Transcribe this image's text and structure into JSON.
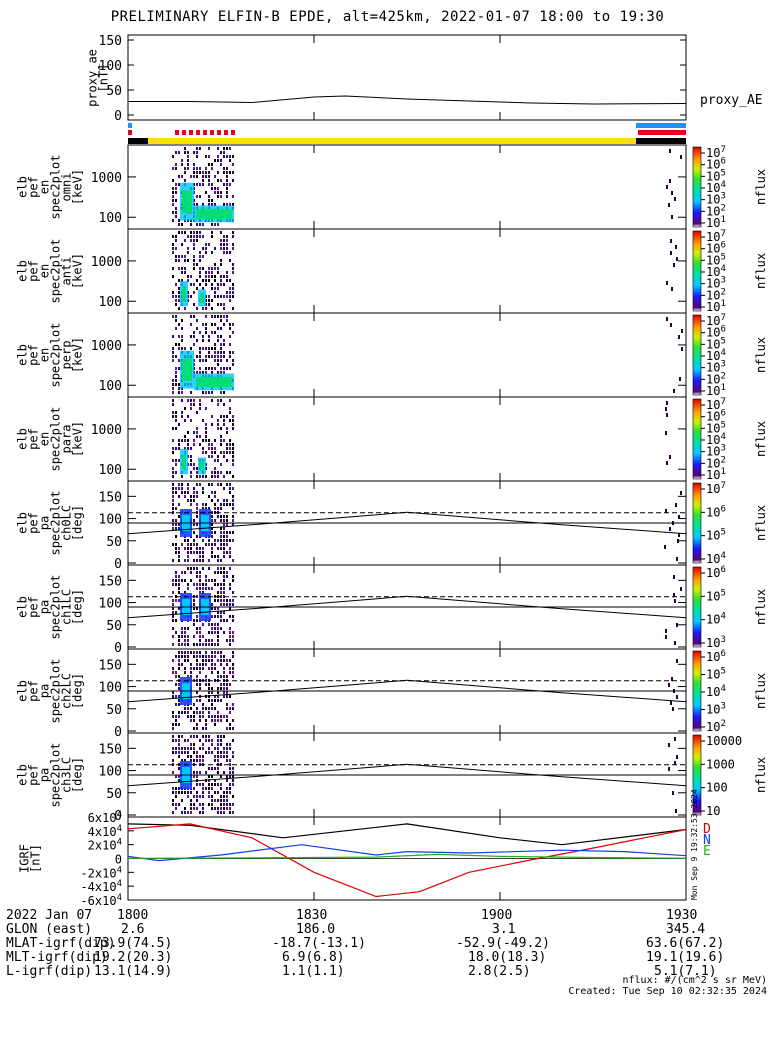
{
  "title": "PRELIMINARY ELFIN-B EPDE, alt=425km, 2022-01-07 18:00 to 19:30",
  "colors": {
    "state_blue": "#1e90ff",
    "state_red": "#e8001c",
    "state_yellow": "#ffe000",
    "state_black": "#000000",
    "grf_total": "#000000",
    "grf_d": "#e00000",
    "grf_n": "#1040e0",
    "grf_e": "#20b020"
  },
  "chart_data": [
    {
      "type": "line",
      "ylabel": "proxy_ae [nT]",
      "right_label": "proxy_AE",
      "yticks": [
        "150",
        "100",
        "50",
        "0"
      ],
      "ylim": [
        -10,
        160
      ],
      "x_min": [
        0,
        10,
        20,
        30,
        35,
        45,
        55,
        65,
        75,
        90
      ],
      "y": [
        27,
        27,
        25,
        36,
        38,
        32,
        28,
        24,
        22,
        23
      ]
    },
    {
      "type": "heatmap",
      "panel": "elb_pef_en_spec2plot_omni",
      "ylabel": [
        "elb",
        "pef",
        "en",
        "spec2plot",
        "omni",
        "[keV]"
      ],
      "yticks": [
        "1000",
        "100"
      ],
      "colorbar": {
        "label": "nflux",
        "ticks": [
          "10^7",
          "10^6",
          "10^5",
          "10^4",
          "10^3",
          "10^2",
          "10^1"
        ]
      }
    },
    {
      "type": "heatmap",
      "panel": "elb_pef_en_spec2plot_anti",
      "ylabel": [
        "elb",
        "pef",
        "en",
        "spec2plot",
        "anti",
        "[keV]"
      ],
      "yticks": [
        "1000",
        "100"
      ],
      "colorbar": {
        "label": "nflux",
        "ticks": [
          "10^7",
          "10^6",
          "10^5",
          "10^4",
          "10^3",
          "10^2",
          "10^1"
        ]
      }
    },
    {
      "type": "heatmap",
      "panel": "elb_pef_en_spec2plot_perp",
      "ylabel": [
        "elb",
        "pef",
        "en",
        "spec2plot",
        "perp",
        "[keV]"
      ],
      "yticks": [
        "1000",
        "100"
      ],
      "colorbar": {
        "label": "nflux",
        "ticks": [
          "10^7",
          "10^6",
          "10^5",
          "10^4",
          "10^3",
          "10^2",
          "10^1"
        ]
      }
    },
    {
      "type": "heatmap",
      "panel": "elb_pef_en_spec2plot_para",
      "ylabel": [
        "elb",
        "pef",
        "en",
        "spec2plot",
        "para",
        "[keV]"
      ],
      "yticks": [
        "1000",
        "100"
      ],
      "colorbar": {
        "label": "nflux",
        "ticks": [
          "10^7",
          "10^6",
          "10^5",
          "10^4",
          "10^3",
          "10^2",
          "10^1"
        ]
      }
    },
    {
      "type": "heatmap",
      "panel": "elb_pef_pa_spec2plot_ch0LC",
      "ylabel": [
        "elb",
        "pef",
        "pa",
        "spec2plot",
        "ch0LC",
        "[deg]"
      ],
      "yticks": [
        "150",
        "100",
        "50",
        "0"
      ],
      "lc_curve_deg": [
        66,
        86,
        114,
        86,
        66
      ],
      "colorbar": {
        "label": "nflux",
        "ticks": [
          "10^7",
          "10^6",
          "10^5",
          "10^4"
        ]
      }
    },
    {
      "type": "heatmap",
      "panel": "elb_pef_pa_spec2plot_ch1LC",
      "ylabel": [
        "elb",
        "pef",
        "pa",
        "spec2plot",
        "ch1LC",
        "[deg]"
      ],
      "yticks": [
        "150",
        "100",
        "50",
        "0"
      ],
      "lc_curve_deg": [
        66,
        86,
        114,
        86,
        66
      ],
      "colorbar": {
        "label": "nflux",
        "ticks": [
          "10^6",
          "10^5",
          "10^4",
          "10^3"
        ]
      }
    },
    {
      "type": "heatmap",
      "panel": "elb_pef_pa_spec2plot_ch2LC",
      "ylabel": [
        "elb",
        "pef",
        "pa",
        "spec2plot",
        "ch2LC",
        "[deg]"
      ],
      "yticks": [
        "150",
        "100",
        "50",
        "0"
      ],
      "lc_curve_deg": [
        66,
        86,
        114,
        86,
        66
      ],
      "colorbar": {
        "label": "nflux",
        "ticks": [
          "10^6",
          "10^5",
          "10^4",
          "10^3",
          "10^2"
        ]
      }
    },
    {
      "type": "heatmap",
      "panel": "elb_pef_pa_spec2plot_ch3LC",
      "ylabel": [
        "elb",
        "pef",
        "pa",
        "spec2plot",
        "ch3LC",
        "[deg]"
      ],
      "yticks": [
        "150",
        "100",
        "50",
        "0"
      ],
      "lc_curve_deg": [
        66,
        86,
        114,
        86,
        66
      ],
      "colorbar": {
        "label": "nflux",
        "ticks": [
          "10000",
          "1000",
          "100",
          "10"
        ]
      }
    },
    {
      "type": "line",
      "panel": "IGRF",
      "ylabel": "IGRF [nT]",
      "yticks": [
        "6x10^4",
        "4x10^4",
        "2x10^4",
        "0",
        "-2x10^4",
        "-4x10^4",
        "-6x10^4"
      ],
      "ylim": [
        -60000,
        60000
      ],
      "legend": [
        "D",
        "N",
        "E"
      ],
      "series": [
        {
          "name": "total",
          "x_min": [
            0,
            10,
            25,
            45,
            60,
            70,
            90
          ],
          "values": [
            50000,
            48000,
            30000,
            50000,
            30000,
            20000,
            42000
          ]
        },
        {
          "name": "D",
          "x_min": [
            0,
            10,
            20,
            30,
            40,
            47,
            55,
            65,
            75,
            90
          ],
          "values": [
            43000,
            50000,
            30000,
            -20000,
            -55000,
            -48000,
            -20000,
            -2000,
            15000,
            42000
          ]
        },
        {
          "name": "N",
          "x_min": [
            0,
            5,
            15,
            28,
            40,
            45,
            55,
            70,
            80,
            90
          ],
          "values": [
            3000,
            -3000,
            5000,
            20000,
            5000,
            10000,
            8000,
            12000,
            10000,
            4000
          ]
        },
        {
          "name": "E",
          "x_min": [
            0,
            20,
            40,
            50,
            60,
            75,
            90
          ],
          "values": [
            300,
            1000,
            2000,
            6000,
            3000,
            1500,
            500
          ]
        }
      ]
    }
  ],
  "footer": {
    "rows": [
      {
        "label": "2022 Jan 07",
        "v1": "1800",
        "v2": "1830",
        "v3": "1900",
        "v4": "1930"
      },
      {
        "label": "GLON (east)",
        "v1": "2.6",
        "v2": "186.0",
        "v3": "3.1",
        "v4": "345.4"
      },
      {
        "label": "MLAT-igrf(dip)",
        "v1": "73.9(74.5)",
        "v2": "-18.7(-13.1)",
        "v3": "-52.9(-49.2)",
        "v4": "63.6(67.2)"
      },
      {
        "label": "MLT-igrf(dip)",
        "v1": "19.2(20.3)",
        "v2": "6.9(6.8)",
        "v3": "18.0(18.3)",
        "v4": "19.1(19.6)"
      },
      {
        "label": "L-igrf(dip)",
        "v1": "13.1(14.9)",
        "v2": "1.1(1.1)",
        "v3": "2.8(2.5)",
        "v4": "5.1(7.1)"
      }
    ],
    "units": "nflux: #/(cm^2 s sr MeV)",
    "created": "Created: Tue Sep 10 02:32:35 2024",
    "side_stamp": "Mon Sep 9 19:32:53 2024"
  }
}
